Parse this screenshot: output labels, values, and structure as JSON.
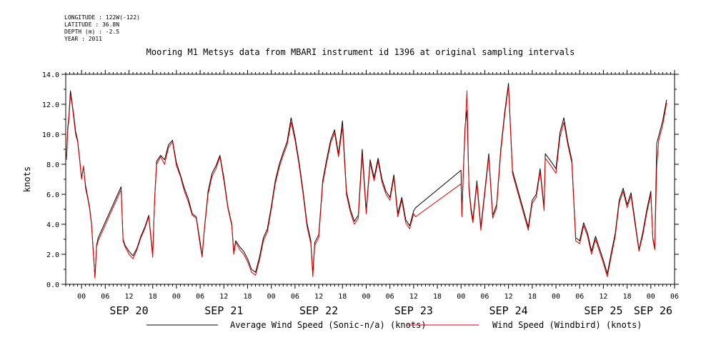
{
  "metadata": {
    "longitude": "LONGITUDE : 122W(-122)",
    "latitude": "LATITUDE : 36.8N",
    "depth": "DEPTH (m) : -2.5",
    "year": "YEAR : 2011"
  },
  "chart_data": {
    "type": "line",
    "title": "Mooring M1 Metsys data from MBARI instrument id 1396 at original sampling intervals",
    "ylabel": "knots",
    "xlabel": "",
    "ylim": [
      0,
      14
    ],
    "yticks": [
      "0.0",
      "2.0",
      "4.0",
      "6.0",
      "8.0",
      "10.0",
      "12.0",
      "14.0"
    ],
    "xlim": [
      -4,
      150
    ],
    "x_units": "hours since SEP 20 00:00, 2011",
    "hour_ticks": [
      "00",
      "06",
      "12",
      "18",
      "00",
      "06",
      "12",
      "18",
      "00",
      "06",
      "12",
      "18",
      "00",
      "06",
      "12",
      "18",
      "00",
      "06",
      "12",
      "18",
      "00",
      "06",
      "12",
      "18",
      "00",
      "06"
    ],
    "date_labels": [
      "SEP 20",
      "SEP 21",
      "SEP 22",
      "SEP 23",
      "SEP 24",
      "SEP 25",
      "SEP 26"
    ],
    "grid": false,
    "legend_position": "bottom",
    "series": [
      {
        "name": "Average Wind Speed (Sonic-n/a) (knots)",
        "color": "#000000",
        "points": [
          [
            -3.8,
            8.5
          ],
          [
            -3.5,
            10.4
          ],
          [
            -3.2,
            11.2
          ],
          [
            -2.8,
            12.9
          ],
          [
            -2.4,
            12.1
          ],
          [
            -2,
            11.3
          ],
          [
            -1.5,
            10.2
          ],
          [
            -1,
            9.6
          ],
          [
            -0.5,
            8.4
          ],
          [
            0,
            7.1
          ],
          [
            0.5,
            7.8
          ],
          [
            1,
            6.6
          ],
          [
            1.5,
            5.9
          ],
          [
            2,
            5.2
          ],
          [
            2.5,
            4.1
          ],
          [
            3,
            2.1
          ],
          [
            3.4,
            0.5
          ],
          [
            3.8,
            2.6
          ],
          [
            4.2,
            3.1
          ],
          [
            10,
            6.5
          ],
          [
            10.5,
            3.0
          ],
          [
            11,
            2.6
          ],
          [
            12,
            2.2
          ],
          [
            13,
            1.9
          ],
          [
            14,
            2.4
          ],
          [
            15,
            3.2
          ],
          [
            16,
            3.8
          ],
          [
            17,
            4.6
          ],
          [
            18,
            2.0
          ],
          [
            18.5,
            5.8
          ],
          [
            19,
            8.2
          ],
          [
            20,
            8.6
          ],
          [
            21,
            8.3
          ],
          [
            22,
            9.3
          ],
          [
            23,
            9.6
          ],
          [
            24,
            8.1
          ],
          [
            25,
            7.3
          ],
          [
            26,
            6.4
          ],
          [
            27,
            5.7
          ],
          [
            28,
            4.7
          ],
          [
            29,
            4.5
          ],
          [
            30,
            2.8
          ],
          [
            30.5,
            1.9
          ],
          [
            31,
            3.5
          ],
          [
            32,
            6.2
          ],
          [
            33,
            7.4
          ],
          [
            34,
            7.9
          ],
          [
            35,
            8.6
          ],
          [
            36,
            7.1
          ],
          [
            37,
            5.2
          ],
          [
            38,
            4.0
          ],
          [
            38.5,
            2.1
          ],
          [
            39,
            2.9
          ],
          [
            40,
            2.5
          ],
          [
            41,
            2.2
          ],
          [
            42,
            1.7
          ],
          [
            43,
            1.0
          ],
          [
            44,
            0.8
          ],
          [
            45,
            1.8
          ],
          [
            46,
            3.1
          ],
          [
            47,
            3.7
          ],
          [
            48,
            5.2
          ],
          [
            49,
            6.9
          ],
          [
            50,
            8.0
          ],
          [
            51,
            8.8
          ],
          [
            52,
            9.5
          ],
          [
            53,
            11.1
          ],
          [
            54,
            9.8
          ],
          [
            55,
            8.2
          ],
          [
            56,
            6.3
          ],
          [
            57,
            4.1
          ],
          [
            58,
            2.9
          ],
          [
            58.5,
            0.7
          ],
          [
            59,
            2.8
          ],
          [
            60,
            3.3
          ],
          [
            61,
            6.9
          ],
          [
            62,
            8.3
          ],
          [
            63,
            9.6
          ],
          [
            64,
            10.3
          ],
          [
            65,
            8.7
          ],
          [
            66,
            10.9
          ],
          [
            67,
            6.2
          ],
          [
            68,
            5.0
          ],
          [
            69,
            4.2
          ],
          [
            70,
            4.6
          ],
          [
            71,
            9.0
          ],
          [
            72,
            4.9
          ],
          [
            73,
            8.3
          ],
          [
            74,
            7.1
          ],
          [
            75,
            8.4
          ],
          [
            76,
            7.0
          ],
          [
            77,
            6.2
          ],
          [
            78,
            5.8
          ],
          [
            79,
            7.3
          ],
          [
            80,
            4.7
          ],
          [
            81,
            5.8
          ],
          [
            82,
            4.3
          ],
          [
            83,
            3.9
          ],
          [
            84,
            4.9
          ],
          [
            84.5,
            5.1
          ],
          [
            96,
            7.6
          ],
          [
            96.2,
            4.6
          ],
          [
            96.6,
            7.8
          ],
          [
            97,
            10.5
          ],
          [
            97.5,
            11.6
          ],
          [
            98,
            6.5
          ],
          [
            98.5,
            5.1
          ],
          [
            99,
            4.3
          ],
          [
            100,
            6.9
          ],
          [
            101,
            3.8
          ],
          [
            102,
            6.2
          ],
          [
            103,
            8.7
          ],
          [
            104,
            4.6
          ],
          [
            105,
            5.3
          ],
          [
            106,
            8.9
          ],
          [
            107,
            11.4
          ],
          [
            108,
            13.4
          ],
          [
            109,
            7.6
          ],
          [
            109.3,
            7.3
          ],
          [
            113,
            3.8
          ],
          [
            114,
            5.6
          ],
          [
            115,
            6.0
          ],
          [
            116,
            7.7
          ],
          [
            117,
            5.1
          ],
          [
            117.3,
            8.7
          ],
          [
            119,
            8.1
          ],
          [
            120,
            7.7
          ],
          [
            121,
            10.1
          ],
          [
            122,
            11.1
          ],
          [
            123,
            9.5
          ],
          [
            124,
            8.3
          ],
          [
            125,
            3.1
          ],
          [
            126,
            2.9
          ],
          [
            127,
            4.1
          ],
          [
            128,
            3.4
          ],
          [
            129,
            2.2
          ],
          [
            130,
            3.2
          ],
          [
            131,
            2.4
          ],
          [
            132,
            1.6
          ],
          [
            133,
            0.7
          ],
          [
            134,
            2.1
          ],
          [
            135,
            3.4
          ],
          [
            136,
            5.6
          ],
          [
            137,
            6.4
          ],
          [
            138,
            5.3
          ],
          [
            139,
            6.1
          ],
          [
            140,
            4.2
          ],
          [
            141,
            2.3
          ],
          [
            142,
            3.5
          ],
          [
            143,
            5.0
          ],
          [
            144,
            6.2
          ],
          [
            144.5,
            3.1
          ],
          [
            145,
            2.4
          ],
          [
            145.5,
            9.4
          ],
          [
            146,
            9.9
          ],
          [
            147,
            10.9
          ],
          [
            148,
            12.3
          ]
        ]
      },
      {
        "name": "Wind Speed (Windbird) (knots)",
        "color": "#e00000",
        "points": [
          [
            -3.8,
            8.3
          ],
          [
            -3.5,
            10.2
          ],
          [
            -3.2,
            11.0
          ],
          [
            -2.8,
            12.6
          ],
          [
            -2.4,
            12.0
          ],
          [
            -2,
            11.1
          ],
          [
            -1.5,
            10.0
          ],
          [
            -1,
            9.5
          ],
          [
            -0.5,
            8.3
          ],
          [
            0,
            7.0
          ],
          [
            0.5,
            7.9
          ],
          [
            1,
            6.4
          ],
          [
            1.5,
            5.8
          ],
          [
            2,
            5.1
          ],
          [
            2.5,
            4.0
          ],
          [
            3,
            2.0
          ],
          [
            3.4,
            0.4
          ],
          [
            3.8,
            2.5
          ],
          [
            4.2,
            2.9
          ],
          [
            10,
            6.3
          ],
          [
            10.5,
            2.9
          ],
          [
            11,
            2.5
          ],
          [
            12,
            2.0
          ],
          [
            13,
            1.7
          ],
          [
            14,
            2.3
          ],
          [
            15,
            3.1
          ],
          [
            16,
            3.7
          ],
          [
            17,
            4.5
          ],
          [
            18,
            1.8
          ],
          [
            18.5,
            5.7
          ],
          [
            19,
            8.0
          ],
          [
            20,
            8.5
          ],
          [
            21,
            8.0
          ],
          [
            22,
            9.1
          ],
          [
            23,
            9.5
          ],
          [
            24,
            7.9
          ],
          [
            25,
            7.2
          ],
          [
            26,
            6.2
          ],
          [
            27,
            5.5
          ],
          [
            28,
            4.6
          ],
          [
            29,
            4.4
          ],
          [
            30,
            2.6
          ],
          [
            30.5,
            1.8
          ],
          [
            31,
            3.4
          ],
          [
            32,
            6.0
          ],
          [
            33,
            7.2
          ],
          [
            34,
            7.7
          ],
          [
            35,
            8.5
          ],
          [
            36,
            6.9
          ],
          [
            37,
            5.1
          ],
          [
            38,
            3.9
          ],
          [
            38.5,
            2.0
          ],
          [
            39,
            2.8
          ],
          [
            40,
            2.3
          ],
          [
            41,
            2.0
          ],
          [
            42,
            1.5
          ],
          [
            43,
            0.8
          ],
          [
            44,
            0.6
          ],
          [
            45,
            1.6
          ],
          [
            46,
            2.9
          ],
          [
            47,
            3.5
          ],
          [
            48,
            5.0
          ],
          [
            49,
            6.7
          ],
          [
            50,
            7.8
          ],
          [
            51,
            8.6
          ],
          [
            52,
            9.3
          ],
          [
            53,
            10.8
          ],
          [
            54,
            9.6
          ],
          [
            55,
            8.0
          ],
          [
            56,
            6.1
          ],
          [
            57,
            3.9
          ],
          [
            58,
            2.7
          ],
          [
            58.5,
            0.5
          ],
          [
            59,
            2.6
          ],
          [
            60,
            3.1
          ],
          [
            61,
            6.7
          ],
          [
            62,
            8.1
          ],
          [
            63,
            9.4
          ],
          [
            64,
            10.1
          ],
          [
            65,
            8.5
          ],
          [
            66,
            10.5
          ],
          [
            67,
            6.0
          ],
          [
            68,
            4.8
          ],
          [
            69,
            4.0
          ],
          [
            70,
            4.4
          ],
          [
            71,
            8.6
          ],
          [
            72,
            4.7
          ],
          [
            73,
            8.1
          ],
          [
            74,
            6.9
          ],
          [
            75,
            8.2
          ],
          [
            76,
            6.8
          ],
          [
            77,
            6.0
          ],
          [
            78,
            5.6
          ],
          [
            79,
            7.1
          ],
          [
            80,
            4.5
          ],
          [
            81,
            5.6
          ],
          [
            82,
            4.1
          ],
          [
            83,
            3.7
          ],
          [
            84,
            4.7
          ],
          [
            84.5,
            4.5
          ],
          [
            96,
            6.7
          ],
          [
            96.2,
            4.5
          ],
          [
            96.6,
            7.6
          ],
          [
            97,
            10.2
          ],
          [
            97.5,
            12.9
          ],
          [
            98,
            6.3
          ],
          [
            98.5,
            4.9
          ],
          [
            99,
            4.1
          ],
          [
            100,
            6.7
          ],
          [
            101,
            3.6
          ],
          [
            102,
            6.0
          ],
          [
            103,
            8.5
          ],
          [
            104,
            4.4
          ],
          [
            105,
            5.1
          ],
          [
            106,
            8.7
          ],
          [
            107,
            11.2
          ],
          [
            108,
            13.2
          ],
          [
            109,
            7.4
          ],
          [
            109.3,
            7.1
          ],
          [
            113,
            3.6
          ],
          [
            114,
            5.4
          ],
          [
            115,
            5.8
          ],
          [
            116,
            7.5
          ],
          [
            117,
            4.9
          ],
          [
            117.3,
            8.4
          ],
          [
            119,
            7.8
          ],
          [
            120,
            7.4
          ],
          [
            121,
            9.8
          ],
          [
            122,
            10.8
          ],
          [
            123,
            9.3
          ],
          [
            124,
            8.1
          ],
          [
            125,
            2.9
          ],
          [
            126,
            2.7
          ],
          [
            127,
            3.9
          ],
          [
            128,
            3.2
          ],
          [
            129,
            2.0
          ],
          [
            130,
            3.0
          ],
          [
            131,
            2.2
          ],
          [
            132,
            1.4
          ],
          [
            133,
            0.5
          ],
          [
            134,
            1.9
          ],
          [
            135,
            3.2
          ],
          [
            136,
            5.4
          ],
          [
            137,
            6.2
          ],
          [
            138,
            5.1
          ],
          [
            139,
            5.9
          ],
          [
            140,
            4.0
          ],
          [
            141,
            2.2
          ],
          [
            142,
            3.3
          ],
          [
            143,
            4.8
          ],
          [
            144,
            6.0
          ],
          [
            144.5,
            3.0
          ],
          [
            145,
            2.3
          ],
          [
            145.5,
            7.9
          ],
          [
            146,
            9.6
          ],
          [
            147,
            10.6
          ],
          [
            148,
            12.1
          ]
        ]
      }
    ]
  }
}
